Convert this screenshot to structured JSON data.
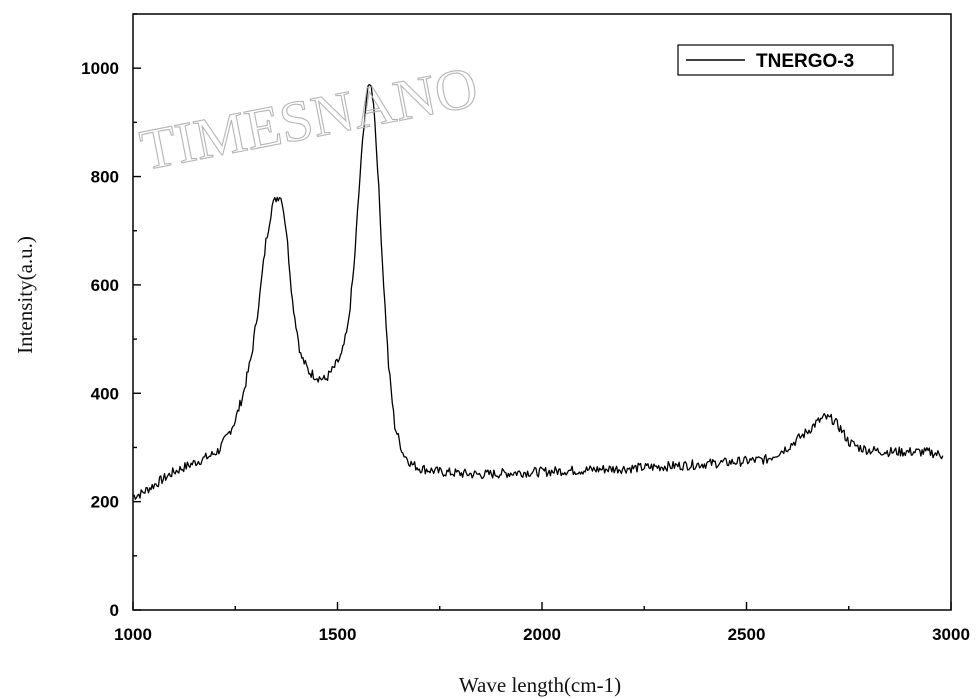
{
  "chart_data": {
    "type": "line",
    "title": "",
    "xlabel": "Wave length(cm-1)",
    "ylabel": "Intensity(a.u.)",
    "xlim": [
      1000,
      3000
    ],
    "ylim": [
      0,
      1100
    ],
    "xticks": [
      1000,
      1500,
      2000,
      2500,
      3000
    ],
    "xticks_minor": [
      1250,
      1750,
      2250,
      2750
    ],
    "yticks": [
      0,
      200,
      400,
      600,
      800,
      1000
    ],
    "yticks_minor": [
      100,
      300,
      500,
      700,
      900,
      1100
    ],
    "grid": false,
    "legend_position": "top-right",
    "line_color": "#000000",
    "series": [
      {
        "name": "TNERGO-3",
        "x": [
          1000,
          1020,
          1050,
          1080,
          1100,
          1130,
          1160,
          1190,
          1210,
          1230,
          1250,
          1270,
          1290,
          1310,
          1325,
          1340,
          1350,
          1358,
          1365,
          1375,
          1390,
          1410,
          1430,
          1450,
          1470,
          1490,
          1510,
          1525,
          1540,
          1555,
          1565,
          1572,
          1580,
          1588,
          1598,
          1610,
          1625,
          1640,
          1660,
          1680,
          1700,
          1750,
          1800,
          1850,
          1900,
          1950,
          2000,
          2050,
          2100,
          2150,
          2200,
          2250,
          2300,
          2350,
          2400,
          2450,
          2500,
          2550,
          2600,
          2625,
          2650,
          2670,
          2690,
          2710,
          2730,
          2750,
          2775,
          2800,
          2850,
          2900,
          2950,
          2980
        ],
        "y": [
          210,
          215,
          230,
          245,
          255,
          265,
          275,
          285,
          295,
          320,
          350,
          400,
          470,
          580,
          680,
          745,
          760,
          765,
          755,
          700,
          570,
          470,
          440,
          430,
          425,
          445,
          470,
          520,
          630,
          800,
          900,
          950,
          975,
          940,
          820,
          640,
          450,
          340,
          290,
          270,
          262,
          255,
          252,
          250,
          252,
          254,
          255,
          257,
          258,
          260,
          261,
          263,
          265,
          267,
          270,
          272,
          275,
          278,
          300,
          315,
          330,
          345,
          355,
          352,
          335,
          310,
          300,
          295,
          292,
          292,
          291,
          285
        ]
      }
    ]
  },
  "watermark": "TIMESNANO"
}
